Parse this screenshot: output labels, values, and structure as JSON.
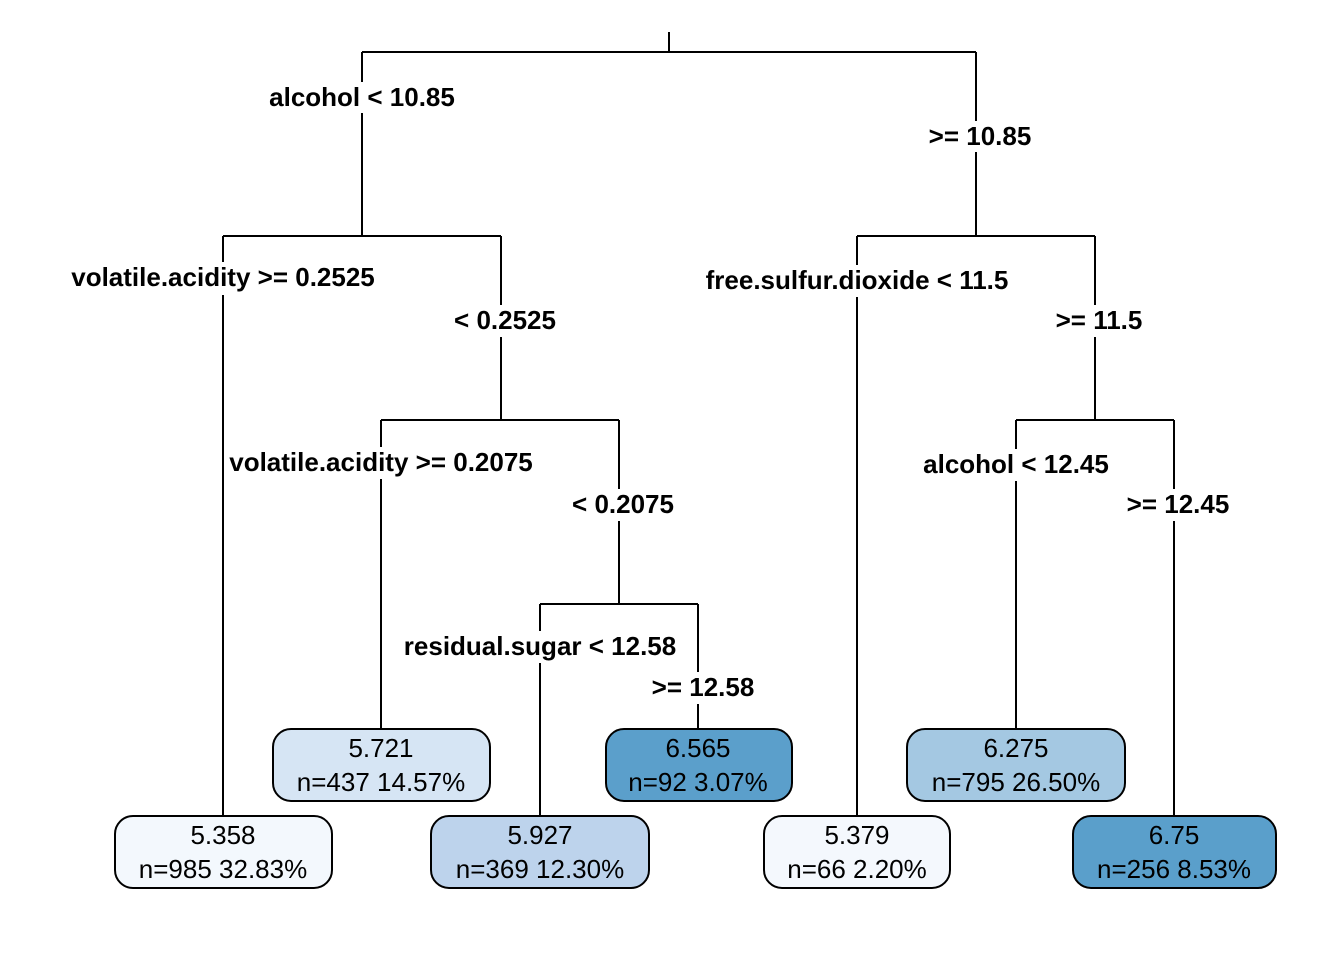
{
  "splits": [
    {
      "id": "root-left",
      "text": "alcohol < 10.85"
    },
    {
      "id": "root-right",
      "text": ">= 10.85"
    },
    {
      "id": "va1-left",
      "text": "volatile.acidity >= 0.2525"
    },
    {
      "id": "va1-right",
      "text": "< 0.2525"
    },
    {
      "id": "fsd-left",
      "text": "free.sulfur.dioxide < 11.5"
    },
    {
      "id": "fsd-right",
      "text": ">= 11.5"
    },
    {
      "id": "va2-left",
      "text": "volatile.acidity >= 0.2075"
    },
    {
      "id": "va2-right",
      "text": "< 0.2075"
    },
    {
      "id": "alc2-left",
      "text": "alcohol < 12.45"
    },
    {
      "id": "alc2-right",
      "text": ">= 12.45"
    },
    {
      "id": "rs-left",
      "text": "residual.sugar < 12.58"
    },
    {
      "id": "rs-right",
      "text": ">= 12.58"
    }
  ],
  "leaves": [
    {
      "id": "leaf-1",
      "value": "5.358",
      "info": "n=985  32.83%",
      "fill": "#f3f8fd"
    },
    {
      "id": "leaf-2",
      "value": "5.721",
      "info": "n=437  14.57%",
      "fill": "#d6e5f4"
    },
    {
      "id": "leaf-3",
      "value": "5.927",
      "info": "n=369  12.30%",
      "fill": "#bdd3ec"
    },
    {
      "id": "leaf-4",
      "value": "6.565",
      "info": "n=92  3.07%",
      "fill": "#5b9fcb"
    },
    {
      "id": "leaf-5",
      "value": "5.379",
      "info": "n=66  2.20%",
      "fill": "#f4f8fd"
    },
    {
      "id": "leaf-6",
      "value": "6.275",
      "info": "n=795  26.50%",
      "fill": "#a4c8e2"
    },
    {
      "id": "leaf-7",
      "value": "6.75",
      "info": "n=256  8.53%",
      "fill": "#5a9fcb"
    }
  ]
}
